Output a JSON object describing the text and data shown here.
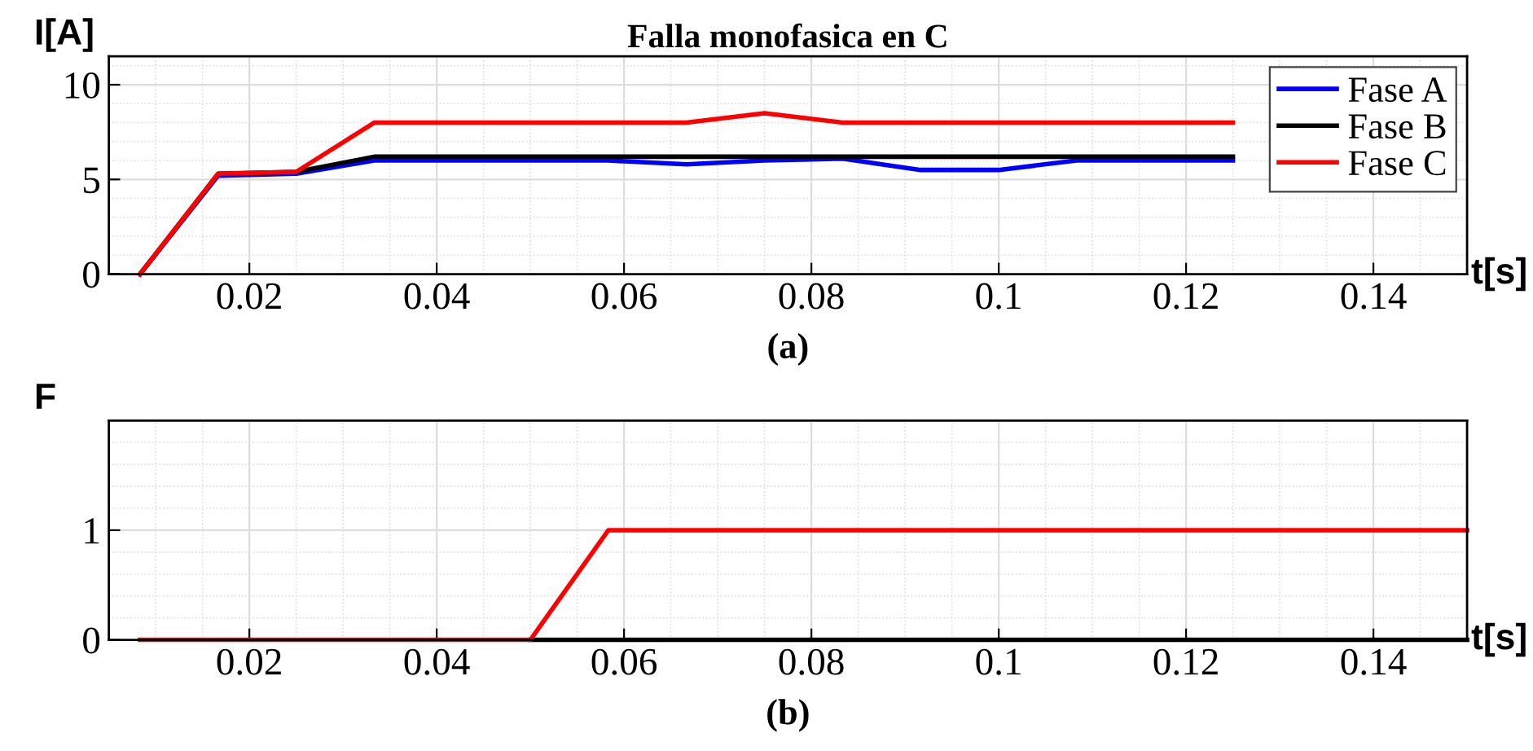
{
  "chart_data": [
    {
      "type": "line",
      "title": "Falla monofasica en C",
      "xlabel": "t[s]",
      "ylabel": "I[A]",
      "annotations": [
        "(a)"
      ],
      "x": [
        0.00833,
        0.01667,
        0.025,
        0.03333,
        0.04167,
        0.05,
        0.05833,
        0.06667,
        0.075,
        0.08333,
        0.09167,
        0.1,
        0.10833,
        0.11667,
        0.125
      ],
      "series": [
        {
          "name": "Fase A",
          "color": "#0000ff",
          "values": [
            0,
            5.2,
            5.3,
            6.0,
            6.0,
            6.0,
            6.0,
            5.8,
            6.0,
            6.1,
            5.5,
            5.5,
            6.0,
            6.0,
            6.0
          ]
        },
        {
          "name": "Fase B",
          "color": "#000000",
          "values": [
            0,
            5.3,
            5.4,
            6.2,
            6.2,
            6.2,
            6.2,
            6.2,
            6.2,
            6.2,
            6.2,
            6.2,
            6.2,
            6.2,
            6.2
          ]
        },
        {
          "name": "Fase C",
          "color": "#ff0000",
          "values": [
            0,
            5.3,
            5.4,
            8.0,
            8.0,
            8.0,
            8.0,
            8.0,
            8.5,
            8.0,
            8.0,
            8.0,
            8.0,
            8.0,
            8.0
          ]
        }
      ],
      "xlim": [
        0.005,
        0.15
      ],
      "ylim": [
        0,
        11.5
      ],
      "xticks": [
        0.02,
        0.04,
        0.06,
        0.08,
        0.1,
        0.12,
        0.14
      ],
      "yticks": [
        0,
        5,
        10
      ],
      "grid": true,
      "legend": "top right"
    },
    {
      "type": "line",
      "xlabel": "t[s]",
      "ylabel": "F",
      "annotations": [
        "(b)"
      ],
      "x": [
        0.00833,
        0.01667,
        0.025,
        0.03333,
        0.04167,
        0.05,
        0.05833,
        0.06667,
        0.075,
        0.08333,
        0.09167,
        0.1,
        0.10833,
        0.11667,
        0.125,
        0.13333,
        0.14167,
        0.15
      ],
      "series": [
        {
          "color": "#000000",
          "values": [
            null,
            null,
            null,
            null,
            null,
            0,
            0,
            0,
            0,
            0,
            0,
            0,
            0,
            0,
            0,
            0,
            0,
            0
          ]
        },
        {
          "color": "#ff0000",
          "values": [
            0,
            0,
            0,
            0,
            0,
            0,
            1,
            1,
            1,
            1,
            1,
            1,
            1,
            1,
            1,
            1,
            1,
            1
          ]
        }
      ],
      "xlim": [
        0.005,
        0.15
      ],
      "ylim": [
        0,
        2
      ],
      "xticks": [
        0.02,
        0.04,
        0.06,
        0.08,
        0.1,
        0.12,
        0.14
      ],
      "yticks": [
        0,
        1
      ],
      "grid": true
    }
  ]
}
